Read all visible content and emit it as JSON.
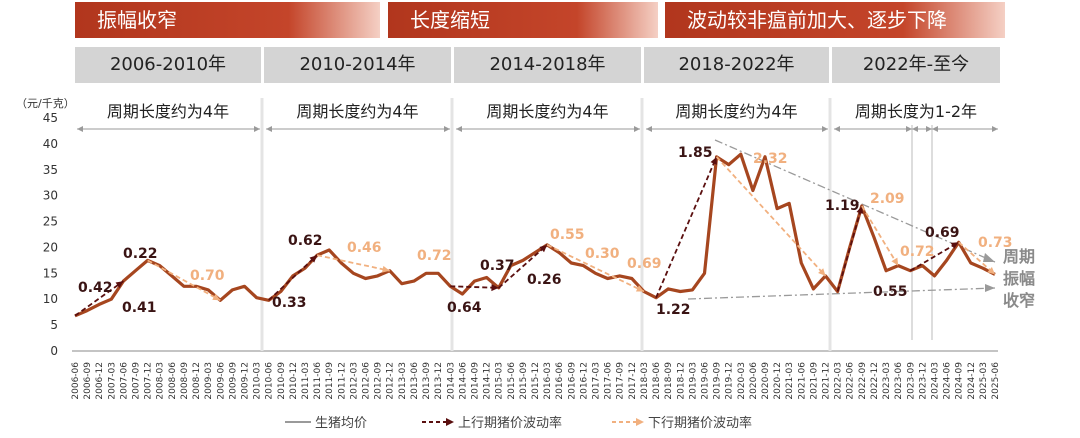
{
  "banners": [
    "振幅收窄",
    "长度缩短",
    "波动较非瘟前加大、逐步下降"
  ],
  "periods": [
    "2006-2010年",
    "2010-2014年",
    "2014-2018年",
    "2018-2022年",
    "2022年-至今"
  ],
  "cycle_labels": [
    "周期长度约为4年",
    "周期长度约为4年",
    "周期长度约为4年",
    "周期长度约为4年",
    "周期长度为1-2年"
  ],
  "side_note": [
    "周期",
    "振幅",
    "收窄"
  ],
  "colors": {
    "banner": "#b7391f",
    "price": "#a6461f",
    "up": "#5a0f0f",
    "down": "#f1b07f",
    "trend": "#9a9a9a",
    "period_bg": "#d4d4d4"
  },
  "chart_data": {
    "type": "line",
    "ylabel": "（元/千克）",
    "ylim": [
      0,
      45
    ],
    "yticks": [
      0,
      5,
      10,
      15,
      20,
      25,
      30,
      35,
      40,
      45
    ],
    "xlabels": [
      "2006-06",
      "2006-09",
      "2006-12",
      "2007-03",
      "2007-06",
      "2007-09",
      "2007-12",
      "2008-03",
      "2008-06",
      "2008-09",
      "2008-12",
      "2009-03",
      "2009-06",
      "2009-09",
      "2009-12",
      "2010-03",
      "2010-06",
      "2010-09",
      "2010-12",
      "2011-03",
      "2011-06",
      "2011-09",
      "2011-12",
      "2012-03",
      "2012-06",
      "2012-09",
      "2012-12",
      "2013-03",
      "2013-06",
      "2013-09",
      "2013-12",
      "2014-03",
      "2014-06",
      "2014-09",
      "2014-12",
      "2015-03",
      "2015-06",
      "2015-09",
      "2015-12",
      "2016-03",
      "2016-06",
      "2016-09",
      "2016-12",
      "2017-03",
      "2017-06",
      "2017-09",
      "2017-12",
      "2018-03",
      "2018-06",
      "2018-09",
      "2018-12",
      "2019-03",
      "2019-06",
      "2019-09",
      "2019-12",
      "2020-03",
      "2020-06",
      "2020-09",
      "2020-12",
      "2021-03",
      "2021-06",
      "2021-09",
      "2021-12",
      "2022-03",
      "2022-06",
      "2022-09",
      "2022-12",
      "2023-03",
      "2023-06",
      "2023-09",
      "2023-12",
      "2024-03",
      "2024-06",
      "2024-09",
      "2024-12",
      "2025-03",
      "2025-06"
    ],
    "series": [
      {
        "name": "生猪均价",
        "values": [
          6.8,
          7.8,
          9,
          10,
          13.5,
          15.5,
          17.5,
          16.5,
          14.5,
          12.5,
          12.5,
          11.8,
          9.8,
          11.8,
          12.5,
          10.3,
          9.8,
          11.5,
          14.5,
          16,
          18.5,
          19.5,
          17,
          15,
          14,
          14.5,
          15.5,
          13,
          13.5,
          15,
          15,
          12.5,
          11,
          13.5,
          14.2,
          12.2,
          16.5,
          17.5,
          19,
          20.5,
          19,
          17,
          16.5,
          15,
          14,
          14.5,
          14,
          11.5,
          10.3,
          12,
          11.5,
          11.8,
          15,
          37.5,
          36,
          38,
          31,
          37.5,
          27.5,
          28.5,
          17,
          12,
          14.5,
          11.5,
          20,
          28,
          22,
          15.5,
          16.5,
          15.5,
          16.5,
          14.5,
          17.5,
          21,
          17,
          16,
          14.8
        ]
      },
      {
        "name": "上行期猪价波动率",
        "values": []
      },
      {
        "name": "下行期猪价波动率",
        "values": []
      }
    ],
    "annotations": {
      "up": [
        "0.42",
        "0.41",
        "0.22",
        "0.33",
        "0.62",
        "0.64",
        "0.37",
        "0.26",
        "1.22",
        "1.85",
        "1.19",
        "0.55",
        "0.69"
      ],
      "down": [
        "0.70",
        "0.46",
        "0.72",
        "0.55",
        "0.30",
        "0.69",
        "2.32",
        "2.09",
        "0.72",
        "0.73"
      ]
    },
    "legend": [
      "生猪均价",
      "上行期猪价波动率",
      "下行期猪价波动率"
    ],
    "legend_position": "bottom"
  }
}
